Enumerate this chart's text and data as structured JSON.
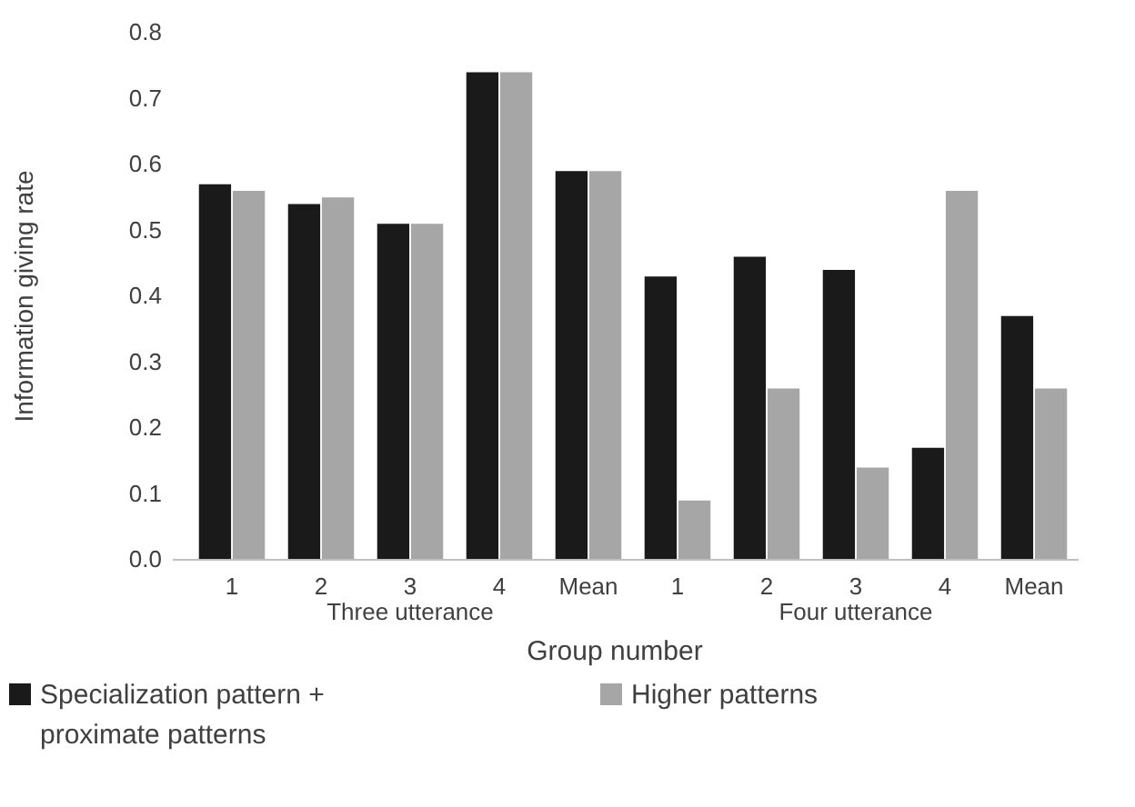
{
  "chart_data": {
    "type": "bar",
    "ylabel": "Information giving rate",
    "xlabel": "Group number",
    "categories": [
      "1",
      "2",
      "3",
      "4",
      "Mean",
      "1",
      "2",
      "3",
      "4",
      "Mean"
    ],
    "series": [
      {
        "name": "Specialization pattern + proximate patterns",
        "color": "#1a1a1a",
        "values": [
          0.57,
          0.54,
          0.51,
          0.74,
          0.59,
          0.43,
          0.46,
          0.44,
          0.17,
          0.37
        ]
      },
      {
        "name": "Higher patterns",
        "color": "#a6a6a6",
        "values": [
          0.56,
          0.55,
          0.51,
          0.74,
          0.59,
          0.09,
          0.26,
          0.14,
          0.56,
          0.26
        ]
      }
    ],
    "annotations": [
      "Three utterance",
      "Four utterance"
    ],
    "ylim": [
      0,
      0.8
    ],
    "yticks": [
      {
        "value": 0,
        "label": "0.0"
      },
      {
        "value": 0.1,
        "label": "0.1"
      },
      {
        "value": 0.2,
        "label": "0.2"
      },
      {
        "value": 0.3,
        "label": "0.3"
      },
      {
        "value": 0.4,
        "label": "0.4"
      },
      {
        "value": 0.5,
        "label": "0.5"
      },
      {
        "value": 0.6,
        "label": "0.6"
      },
      {
        "value": 0.7,
        "label": "0.7"
      },
      {
        "value": 0.8,
        "label": "0.8"
      }
    ],
    "legend": "bottom"
  }
}
